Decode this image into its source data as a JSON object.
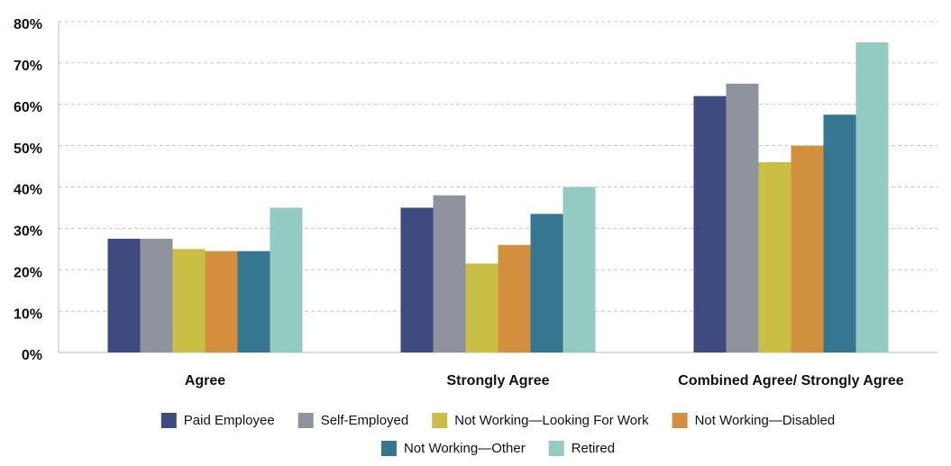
{
  "chart_data": {
    "type": "bar",
    "categories": [
      "Agree",
      "Strongly Agree",
      "Combined Agree/ Strongly Agree"
    ],
    "series": [
      {
        "name": "Paid Employee",
        "color": "#3f4a7e",
        "values": [
          27.5,
          35,
          62
        ]
      },
      {
        "name": "Self-Employed",
        "color": "#8f939e",
        "values": [
          27.5,
          38,
          65
        ]
      },
      {
        "name": "Not Working—Looking For Work",
        "color": "#c9bf45",
        "values": [
          25,
          21.5,
          46
        ]
      },
      {
        "name": "Not Working—Disabled",
        "color": "#d2903e",
        "values": [
          24.5,
          26,
          50
        ]
      },
      {
        "name": "Not Working—Other",
        "color": "#377691",
        "values": [
          24.5,
          33.5,
          57.5
        ]
      },
      {
        "name": "Retired",
        "color": "#93cbc3",
        "values": [
          35,
          40,
          75
        ]
      }
    ],
    "ylim": [
      0,
      80
    ],
    "yticks": [
      {
        "value": 0,
        "label": "0%"
      },
      {
        "value": 10,
        "label": "10%"
      },
      {
        "value": 20,
        "label": "20%"
      },
      {
        "value": 30,
        "label": "30%"
      },
      {
        "value": 40,
        "label": "40%"
      },
      {
        "value": 50,
        "label": "50%"
      },
      {
        "value": 60,
        "label": "60%"
      },
      {
        "value": 70,
        "label": "70%"
      },
      {
        "value": 80,
        "label": "80%"
      }
    ],
    "grid": true,
    "legend": "bottom"
  }
}
